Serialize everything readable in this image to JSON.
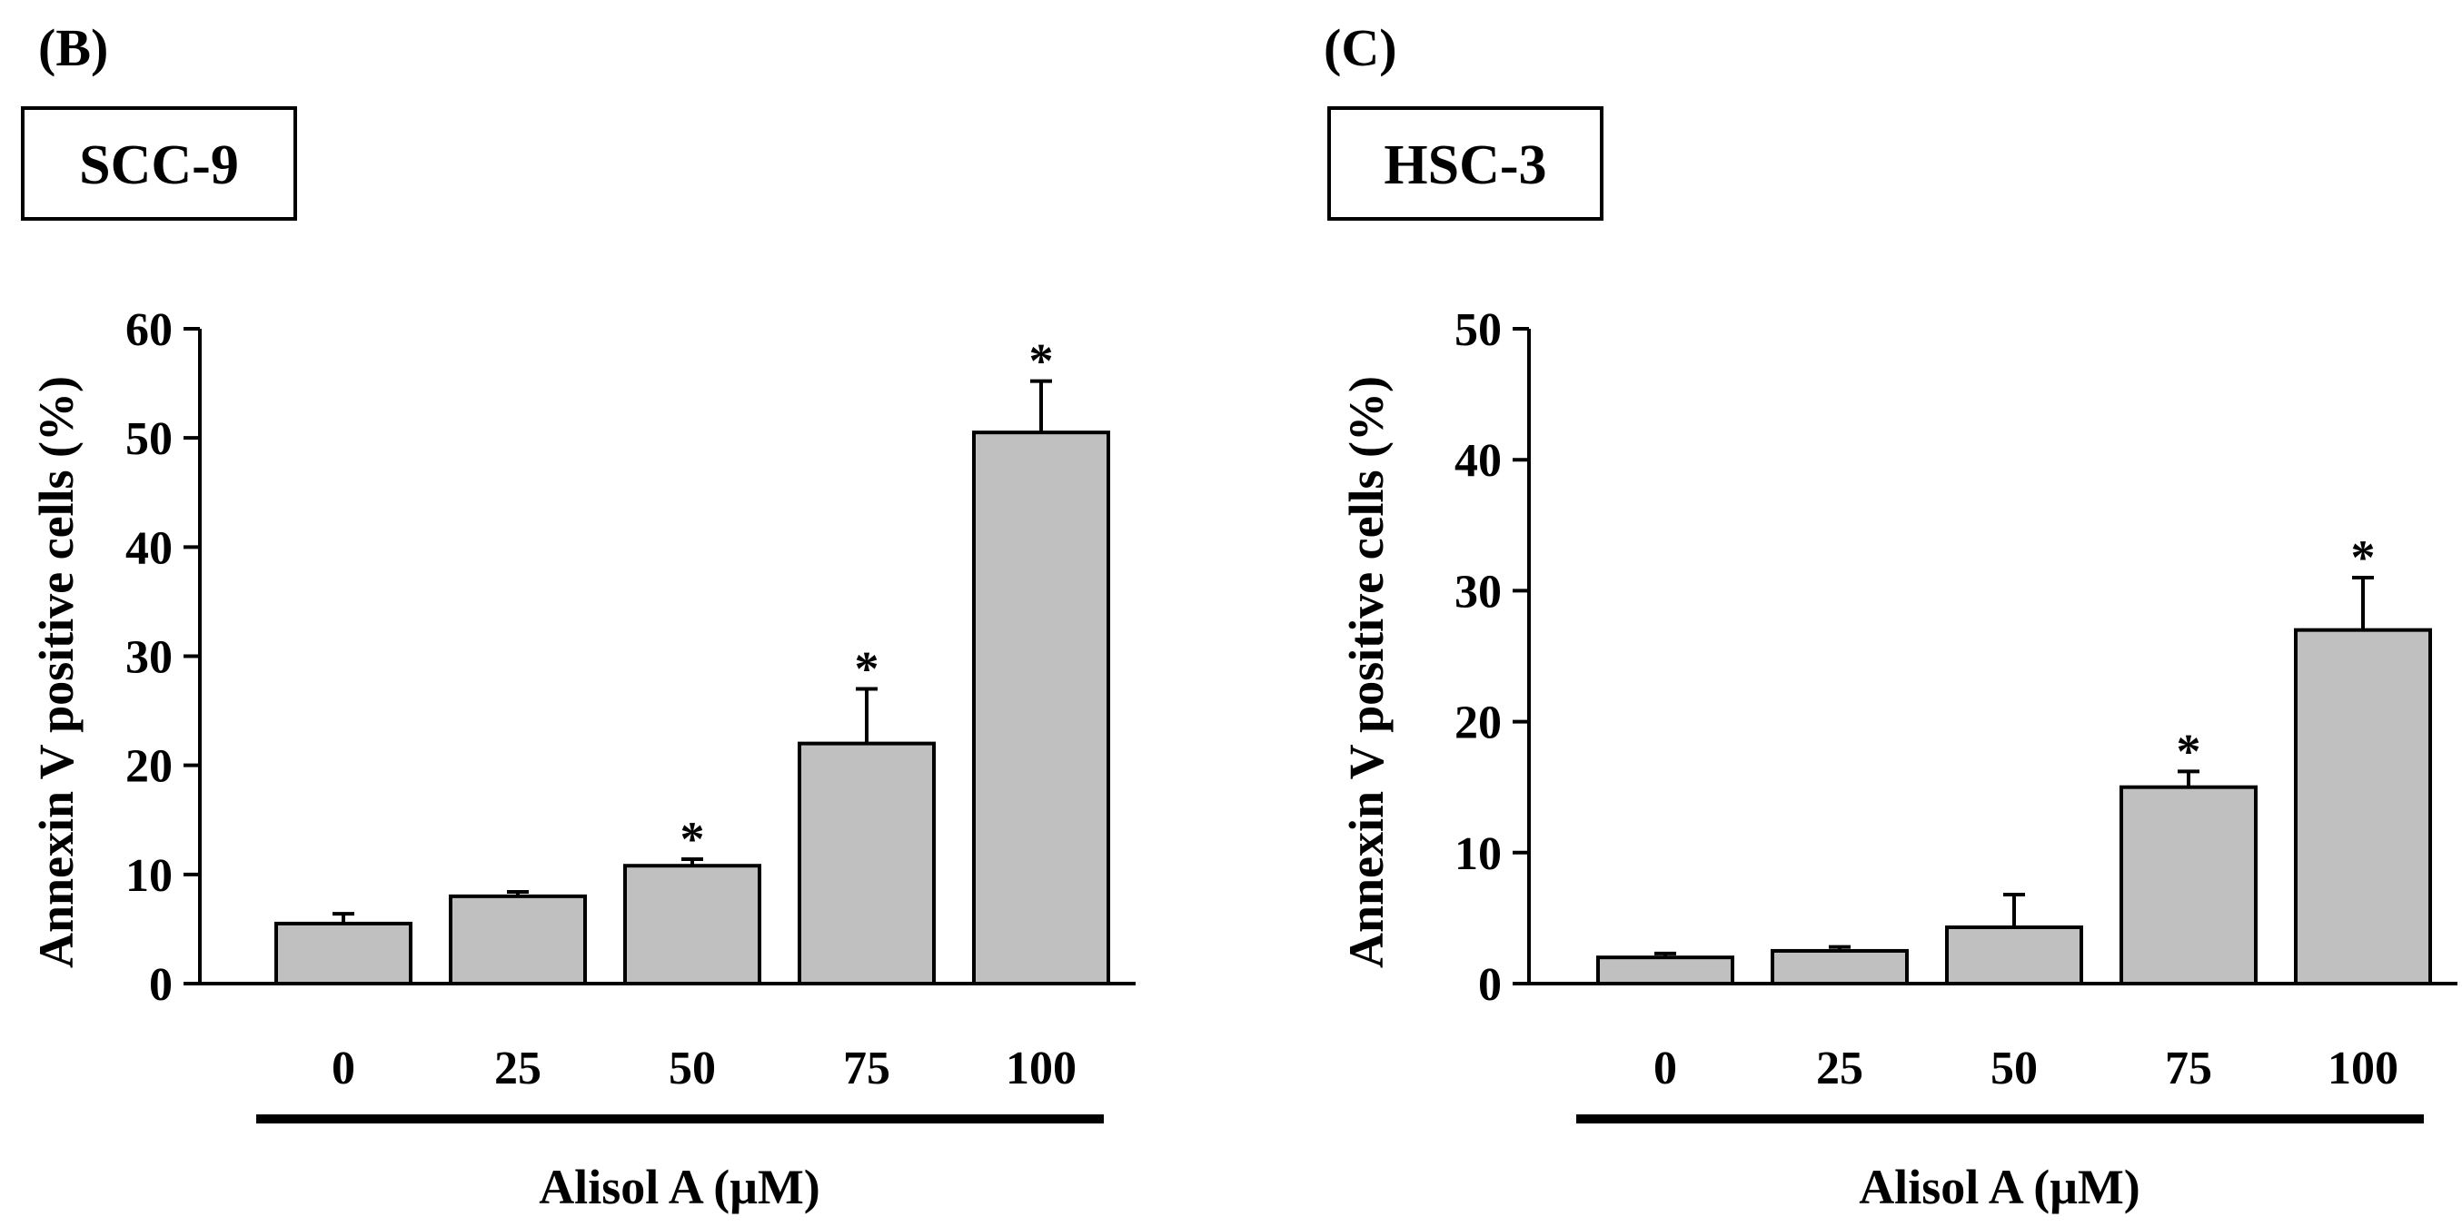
{
  "chart_data": [
    {
      "type": "bar",
      "panel_label": "(B)",
      "cell_line": "SCC-9",
      "ylabel": "Annexin V positive cells (%)",
      "xlabel": "Alisol A (μM)",
      "categories": [
        "0",
        "25",
        "50",
        "75",
        "100"
      ],
      "values": [
        5.5,
        8.0,
        10.8,
        22.0,
        50.5
      ],
      "errors": [
        0.9,
        0.4,
        0.6,
        5.0,
        4.7
      ],
      "significant": [
        false,
        false,
        true,
        true,
        true
      ],
      "significance_mark": "*",
      "ylim": [
        0,
        60
      ],
      "yticks": [
        "0",
        "10",
        "20",
        "30",
        "40",
        "50",
        "60"
      ],
      "bar_color": "#c0c0c0"
    },
    {
      "type": "bar",
      "panel_label": "(C)",
      "cell_line": "HSC-3",
      "ylabel": "Annexin V positive cells (%)",
      "xlabel": "Alisol A (μM)",
      "categories": [
        "0",
        "25",
        "50",
        "75",
        "100"
      ],
      "values": [
        2.0,
        2.5,
        4.3,
        15.0,
        27.0
      ],
      "errors": [
        0.3,
        0.3,
        2.5,
        1.2,
        4.0
      ],
      "significant": [
        false,
        false,
        false,
        true,
        true
      ],
      "significance_mark": "*",
      "ylim": [
        0,
        50
      ],
      "yticks": [
        "0",
        "10",
        "20",
        "30",
        "40",
        "50"
      ],
      "bar_color": "#c0c0c0"
    }
  ]
}
